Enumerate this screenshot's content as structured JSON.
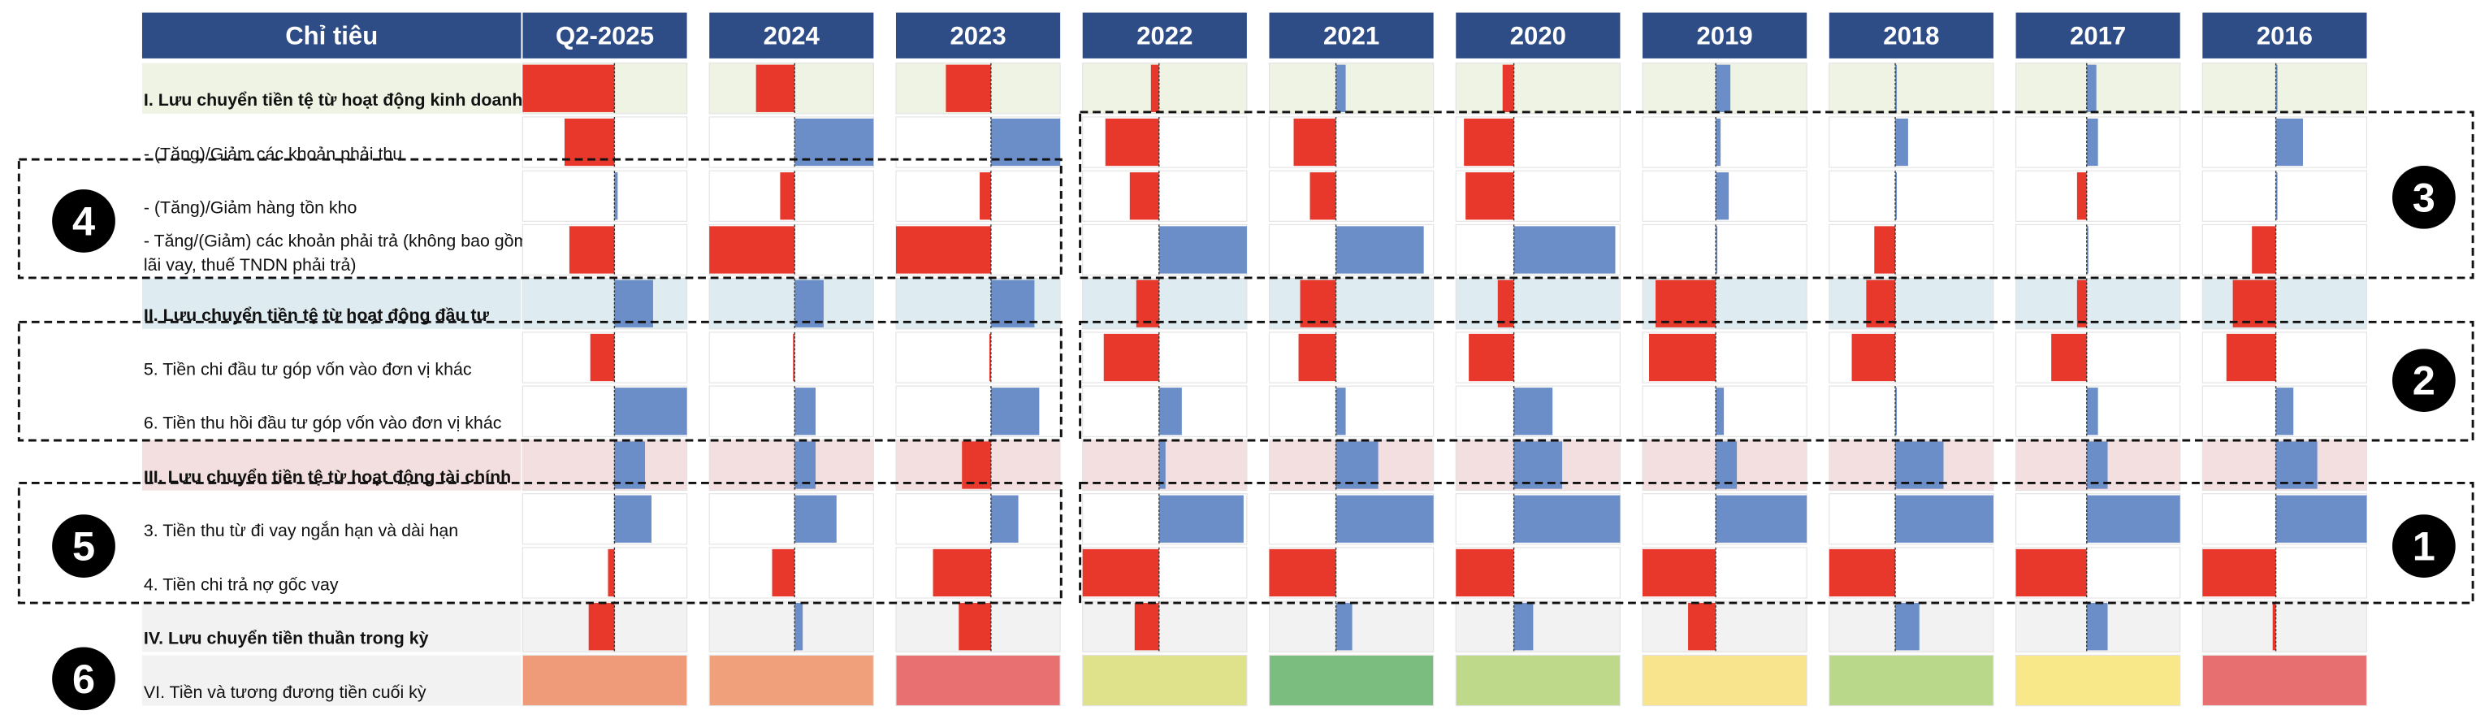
{
  "header": {
    "columns": [
      "Chỉ tiêu",
      "Q2-2025",
      "2024",
      "2023",
      "2022",
      "2021",
      "2020",
      "2019",
      "2018",
      "2017",
      "2016"
    ]
  },
  "colors": {
    "negative": "#e8382b",
    "positive": "#6b8ec8",
    "header": "#2e4d86"
  },
  "rows": [
    {
      "label": "I. Lưu chuyển tiền tệ từ hoạt động kinh doanh",
      "style": "section",
      "background": "#eef3e4",
      "values": [
        -57,
        -24,
        -28,
        -5,
        6,
        -7,
        9,
        1,
        6,
        1
      ]
    },
    {
      "label": "- (Tăng)/Giảm các khoản phải thu",
      "style": "item",
      "background": "#ffffff",
      "values": [
        -31,
        49,
        43,
        -33,
        -26,
        -31,
        3,
        8,
        7,
        17
      ]
    },
    {
      "label": "- (Tăng)/Giảm hàng tồn kho",
      "style": "item",
      "background": "#ffffff",
      "values": [
        2,
        -9,
        -7,
        -18,
        -16,
        -30,
        8,
        1,
        -6,
        1
      ]
    },
    {
      "label": [
        "- Tăng/(Giảm) các khoản phải trả (không bao gồm",
        "lãi vay, thuế TNDN phải trả)"
      ],
      "style": "item",
      "background": "#ffffff",
      "values": [
        -28,
        -53,
        -59,
        54,
        54,
        63,
        1,
        -13,
        1,
        -15
      ]
    },
    {
      "label": "II. Lưu chuyển tiền tệ từ hoạt động đầu tư",
      "style": "section",
      "background": "#deebf0",
      "values": [
        24,
        18,
        27,
        -14,
        -22,
        -10,
        -37,
        -18,
        -6,
        -27
      ]
    },
    {
      "label": "5. Tiền chi đầu tư góp vốn vào đơn vị khác",
      "style": "item",
      "background": "#ffffff",
      "values": [
        -15,
        -1,
        -1,
        -34,
        -23,
        -28,
        -41,
        -27,
        -22,
        -31
      ]
    },
    {
      "label": "6. Tiền thu hồi đầu tư góp vốn vào đơn vị khác",
      "style": "item",
      "background": "#ffffff",
      "values": [
        45,
        13,
        30,
        14,
        6,
        24,
        5,
        1,
        7,
        11
      ]
    },
    {
      "label": "III. Lưu chuyển tiền tệ từ hoạt động tài chính",
      "style": "section",
      "background": "#f3dfdf",
      "values": [
        19,
        13,
        -18,
        4,
        26,
        30,
        13,
        30,
        13,
        26
      ]
    },
    {
      "label": "3. Tiền thu từ đi vay ngắn hạn và dài hạn",
      "style": "item",
      "background": "#ffffff",
      "values": [
        23,
        26,
        17,
        52,
        60,
        66,
        56,
        61,
        58,
        57
      ]
    },
    {
      "label": "4. Tiền chi trả nợ gốc vay",
      "style": "item",
      "background": "#ffffff",
      "values": [
        -4,
        -14,
        -36,
        -47,
        -41,
        -36,
        -45,
        -41,
        -44,
        -46
      ]
    },
    {
      "label": "IV. Lưu chuyển tiền thuần trong kỳ",
      "style": "section",
      "background": "#f2f2f2",
      "values": [
        -16,
        5,
        -20,
        -15,
        10,
        12,
        -17,
        15,
        13,
        -2
      ]
    }
  ],
  "last_row": {
    "label": "VI. Tiền và tương đương tiền cuối kỳ",
    "background": "#f2f2f2",
    "colors": [
      "#ef9a78",
      "#f0a07a",
      "#e97070",
      "#dfe28a",
      "#7bbd7e",
      "#bfd98b",
      "#f7e48c",
      "#b9d88a",
      "#f9e88a",
      "#e86f70"
    ]
  },
  "markers": [
    "1",
    "2",
    "3",
    "4",
    "5",
    "6"
  ]
}
